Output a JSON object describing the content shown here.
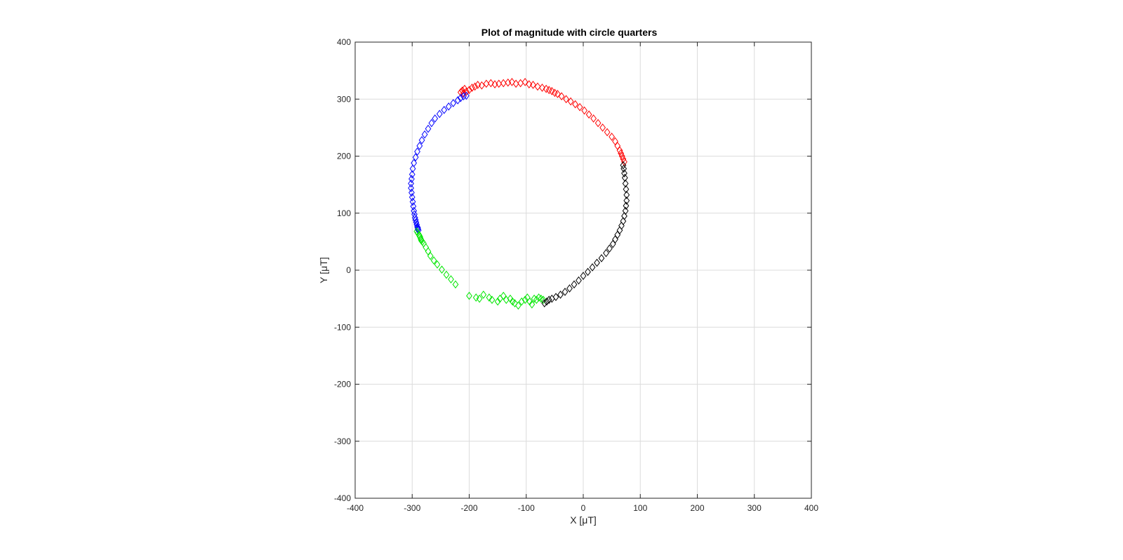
{
  "colors": {
    "q1": "#ff0000",
    "q2": "#0000ff",
    "q3": "#00e600",
    "q4": "#000000",
    "grid": "#dcdcdc",
    "axes": "#262626",
    "background": "#ffffff"
  },
  "chart_data": {
    "type": "scatter",
    "title": "Plot of magnitude with circle quarters",
    "xlabel": "X [μT]",
    "ylabel": "Y [μT]",
    "xlim": [
      -400,
      400
    ],
    "ylim": [
      -400,
      400
    ],
    "xticks": [
      -400,
      -300,
      -200,
      -100,
      0,
      100,
      200,
      300,
      400
    ],
    "yticks": [
      -400,
      -300,
      -200,
      -100,
      0,
      100,
      200,
      300,
      400
    ],
    "grid": true,
    "marker": "diamond",
    "series": [
      {
        "color": "#ff0000",
        "x": [
          -215,
          -212,
          -210,
          -208,
          -205,
          -200,
          -195,
          -190,
          -185,
          -178,
          -170,
          -162,
          -155,
          -148,
          -140,
          -132,
          -125,
          -118,
          -110,
          -102,
          -95,
          -88,
          -80,
          -72,
          -65,
          -60,
          -55,
          -50,
          -45,
          -38,
          -30,
          -22,
          -14,
          -6,
          2,
          10,
          18,
          26,
          34,
          42,
          50,
          56,
          60,
          64,
          66,
          68,
          70,
          72
        ],
        "y": [
          312,
          315,
          310,
          318,
          313,
          316,
          320,
          322,
          325,
          324,
          327,
          328,
          326,
          327,
          328,
          329,
          330,
          327,
          328,
          330,
          326,
          325,
          322,
          320,
          318,
          316,
          314,
          311,
          309,
          305,
          300,
          296,
          291,
          286,
          280,
          273,
          266,
          258,
          250,
          242,
          234,
          226,
          218,
          210,
          205,
          200,
          195,
          190
        ]
      },
      {
        "color": "#0000ff",
        "x": [
          -205,
          -210,
          -215,
          -220,
          -228,
          -236,
          -244,
          -252,
          -260,
          -266,
          -272,
          -278,
          -283,
          -287,
          -291,
          -294,
          -297,
          -299,
          -300,
          -301,
          -302,
          -302,
          -301,
          -300,
          -299,
          -298,
          -297,
          -296,
          -295,
          -294,
          -293,
          -292,
          -291,
          -290,
          -290,
          -289
        ],
        "y": [
          306,
          305,
          302,
          298,
          293,
          287,
          281,
          274,
          266,
          258,
          248,
          238,
          228,
          218,
          208,
          198,
          188,
          178,
          168,
          160,
          152,
          144,
          136,
          128,
          120,
          112,
          104,
          98,
          92,
          88,
          84,
          80,
          76,
          74,
          72,
          70
        ]
      },
      {
        "color": "#00e600",
        "x": [
          -292,
          -290,
          -288,
          -287,
          -286,
          -285,
          -284,
          -282,
          -280,
          -276,
          -272,
          -268,
          -262,
          -256,
          -248,
          -240,
          -232,
          -224,
          -200,
          -188,
          -182,
          -175,
          -165,
          -160,
          -150,
          -146,
          -140,
          -135,
          -128,
          -124,
          -120,
          -114,
          -108,
          -102,
          -98,
          -94,
          -90,
          -86,
          -82,
          -78,
          -74,
          -70
        ],
        "y": [
          68,
          65,
          62,
          60,
          58,
          55,
          52,
          50,
          47,
          40,
          33,
          25,
          17,
          10,
          1,
          -8,
          -16,
          -25,
          -45,
          -48,
          -50,
          -43,
          -48,
          -52,
          -55,
          -50,
          -45,
          -52,
          -50,
          -55,
          -58,
          -62,
          -55,
          -52,
          -48,
          -55,
          -60,
          -50,
          -52,
          -48,
          -50,
          -52
        ]
      },
      {
        "color": "#000000",
        "x": [
          -68,
          -64,
          -60,
          -55,
          -48,
          -40,
          -32,
          -24,
          -16,
          -8,
          0,
          8,
          16,
          24,
          32,
          40,
          46,
          52,
          56,
          60,
          64,
          67,
          70,
          72,
          74,
          75,
          76,
          76,
          75,
          74,
          73,
          72,
          71,
          70
        ],
        "y": [
          -58,
          -55,
          -52,
          -50,
          -47,
          -43,
          -38,
          -32,
          -25,
          -18,
          -10,
          -3,
          5,
          13,
          21,
          30,
          38,
          46,
          54,
          62,
          70,
          78,
          86,
          95,
          104,
          113,
          122,
          132,
          142,
          152,
          162,
          170,
          178,
          184
        ]
      }
    ]
  }
}
